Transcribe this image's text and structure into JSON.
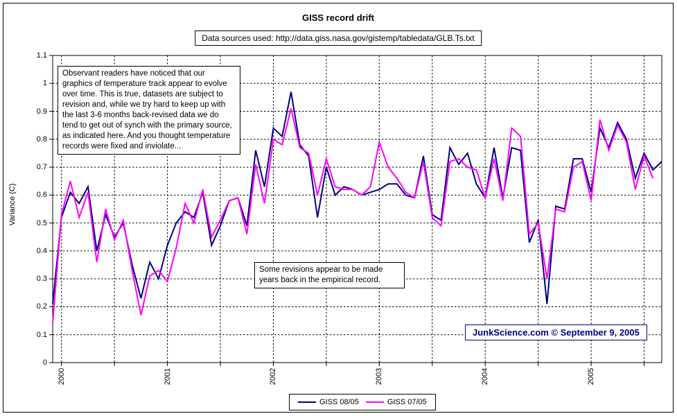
{
  "title": "GISS record drift",
  "subtitle": "Data sources used: http://data.giss.nasa.gov/gistemp/tabledata/GLB.Ts.txt",
  "y_axis_title": "Variance (C)",
  "annotations": {
    "observant": "Observant readers have noticed that our graphics of temperature track appear to evolve over time. This is true, datasets are subject to revision and, while we try hard to keep up with the last 3-6 months back-revised data we do tend to get out of synch with the primary source, as indicated here. And you thought temperature records were fixed and inviolate...",
    "revisions": "Some revisions appear to be made years back in the empirical record."
  },
  "watermark": "JunkScience.com ©  September 9, 2005",
  "legend": {
    "items": [
      {
        "label": "GISS 08/05",
        "color": "#000080"
      },
      {
        "label": "GISS 07/05",
        "color": "#FF00FF"
      }
    ]
  },
  "chart_data": {
    "type": "line",
    "title": "GISS record drift",
    "ylabel": "Variance (C)",
    "ylim": [
      0,
      1.1
    ],
    "y_tick_labels": [
      "0",
      "0.1",
      "0.2",
      "0.3",
      "0.4",
      "0.5",
      "0.6",
      "0.7",
      "0.8",
      "0.9",
      "1",
      "1.1"
    ],
    "x_unit": "month",
    "x_start": "1999-12",
    "x_tick_labels": [
      "2000",
      "2001",
      "2002",
      "2003",
      "2004",
      "2005"
    ],
    "grid": "black dashed; horizontal every 0.1, vertical every 6 months (Jan/Jul)",
    "legend_position": "bottom-center",
    "series": [
      {
        "name": "GISS 08/05",
        "color": "#000080",
        "values": [
          0.21,
          0.52,
          0.61,
          0.57,
          0.63,
          0.4,
          0.53,
          0.45,
          0.5,
          0.35,
          0.23,
          0.36,
          0.3,
          0.42,
          0.5,
          0.54,
          0.52,
          0.61,
          0.42,
          0.49,
          0.58,
          0.59,
          0.49,
          0.76,
          0.63,
          0.84,
          0.81,
          0.97,
          0.78,
          0.74,
          0.52,
          0.7,
          0.6,
          0.63,
          0.62,
          0.6,
          0.61,
          0.62,
          0.64,
          0.64,
          0.6,
          0.59,
          0.74,
          0.53,
          0.51,
          0.77,
          0.71,
          0.75,
          0.64,
          0.59,
          0.77,
          0.59,
          0.77,
          0.76,
          0.43,
          0.51,
          0.21,
          0.56,
          0.55,
          0.73,
          0.73,
          0.61,
          0.84,
          0.77,
          0.86,
          0.8,
          0.66,
          0.75,
          0.69,
          0.72
        ]
      },
      {
        "name": "GISS 07/05",
        "color": "#FF00FF",
        "values": [
          0.14,
          0.53,
          0.65,
          0.52,
          0.61,
          0.36,
          0.55,
          0.44,
          0.51,
          0.33,
          0.17,
          0.31,
          0.33,
          0.29,
          0.41,
          0.57,
          0.5,
          0.62,
          0.45,
          0.51,
          0.58,
          0.59,
          0.46,
          0.71,
          0.57,
          0.8,
          0.78,
          0.91,
          0.77,
          0.75,
          0.6,
          0.73,
          0.63,
          0.62,
          0.62,
          0.6,
          0.63,
          0.79,
          0.7,
          0.66,
          0.61,
          0.59,
          0.72,
          0.52,
          0.49,
          0.72,
          0.73,
          0.7,
          0.69,
          0.59,
          0.73,
          0.58,
          0.84,
          0.81,
          0.46,
          0.5,
          0.3,
          0.55,
          0.54,
          0.7,
          0.72,
          0.58,
          0.87,
          0.76,
          0.85,
          0.79,
          0.62,
          0.74,
          0.66
        ]
      }
    ]
  }
}
